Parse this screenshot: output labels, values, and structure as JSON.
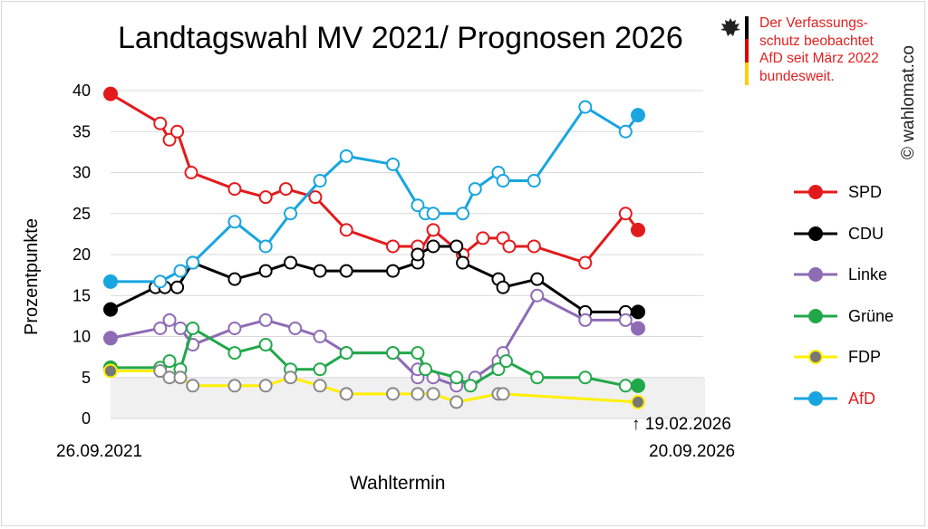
{
  "title": "Landtagswahl MV 2021/ Prognosen 2026",
  "notice": {
    "text_lines": [
      "Der Verfassungs-",
      "schutz beobachtet",
      "AfD seit März 2022",
      "bundesweit."
    ],
    "color": "#e02020",
    "icon": "eagle-icon",
    "flag_colors": [
      "#000000",
      "#dd0000",
      "#ffce00"
    ]
  },
  "watermark": "© wahlomat.co",
  "dates": {
    "start": "26.09.2021",
    "latest": "↑ 19.02.2026",
    "end": "20.09.2026"
  },
  "chart_data": {
    "type": "line",
    "title": "Landtagswahl MV 2021/ Prognosen 2026",
    "xlabel": "Wahltermin",
    "ylabel": "Prozentpunkte",
    "ylim": [
      0,
      40
    ],
    "yticks": [
      "0",
      "5",
      "10",
      "15",
      "20",
      "25",
      "30",
      "35",
      "40"
    ],
    "xrange": [
      0,
      34
    ],
    "threshold_band": 5,
    "grid": true,
    "legend_position": "right",
    "series": [
      {
        "name": "SPD",
        "color": "#e31a1c",
        "label_color": "#000000",
        "points": [
          [
            0,
            39.6
          ],
          [
            3.2,
            36
          ],
          [
            3.8,
            34
          ],
          [
            4.3,
            35
          ],
          [
            5.2,
            30
          ],
          [
            8,
            28
          ],
          [
            10,
            27
          ],
          [
            11.3,
            28
          ],
          [
            13.2,
            27
          ],
          [
            15.2,
            23
          ],
          [
            18.2,
            21
          ],
          [
            19.8,
            21
          ],
          [
            19.8,
            20
          ],
          [
            20.8,
            23
          ],
          [
            22.7,
            20
          ],
          [
            24,
            22
          ],
          [
            25.3,
            22
          ],
          [
            25.7,
            21
          ],
          [
            27.3,
            21
          ],
          [
            30.6,
            19
          ],
          [
            33.2,
            25
          ],
          [
            34,
            23
          ]
        ]
      },
      {
        "name": "CDU",
        "color": "#000000",
        "label_color": "#000000",
        "points": [
          [
            0,
            13.3
          ],
          [
            2.9,
            16
          ],
          [
            3.5,
            16
          ],
          [
            4.3,
            16
          ],
          [
            5.3,
            19
          ],
          [
            8,
            17
          ],
          [
            10,
            18
          ],
          [
            11.6,
            19
          ],
          [
            13.5,
            18
          ],
          [
            15.2,
            18
          ],
          [
            18.2,
            18
          ],
          [
            19.8,
            19
          ],
          [
            19.8,
            20
          ],
          [
            20.8,
            21
          ],
          [
            22.3,
            21
          ],
          [
            22.7,
            19
          ],
          [
            25,
            17
          ],
          [
            25.3,
            16
          ],
          [
            27.5,
            17
          ],
          [
            30.6,
            13
          ],
          [
            33.2,
            13
          ],
          [
            34,
            13
          ]
        ]
      },
      {
        "name": "Linke",
        "color": "#8e6bb5",
        "label_color": "#000000",
        "points": [
          [
            0,
            9.8
          ],
          [
            3.2,
            11
          ],
          [
            3.8,
            12
          ],
          [
            4.5,
            11
          ],
          [
            5.3,
            9
          ],
          [
            8,
            11
          ],
          [
            10,
            12
          ],
          [
            11.9,
            11
          ],
          [
            13.5,
            10
          ],
          [
            15.2,
            8
          ],
          [
            18.2,
            8
          ],
          [
            19.8,
            5
          ],
          [
            19.8,
            6
          ],
          [
            20.8,
            5
          ],
          [
            22.3,
            4
          ],
          [
            23.5,
            5
          ],
          [
            25,
            7
          ],
          [
            25.3,
            8
          ],
          [
            27.5,
            15
          ],
          [
            30.6,
            12
          ],
          [
            33.2,
            12
          ],
          [
            34,
            11
          ]
        ]
      },
      {
        "name": "Grüne",
        "color": "#21a84a",
        "label_color": "#000000",
        "points": [
          [
            0,
            6.2
          ],
          [
            3.2,
            6.2
          ],
          [
            3.8,
            7
          ],
          [
            4.5,
            6
          ],
          [
            5.3,
            11
          ],
          [
            8,
            8
          ],
          [
            10,
            9
          ],
          [
            11.6,
            6
          ],
          [
            13.5,
            6
          ],
          [
            15.2,
            8
          ],
          [
            18.2,
            8
          ],
          [
            19.8,
            8
          ],
          [
            20.3,
            6
          ],
          [
            22.3,
            5
          ],
          [
            23.2,
            4
          ],
          [
            25,
            6
          ],
          [
            25.5,
            7
          ],
          [
            27.5,
            5
          ],
          [
            30.6,
            5
          ],
          [
            33.2,
            4
          ],
          [
            34,
            4
          ]
        ]
      },
      {
        "name": "FDP",
        "color": "#ffef00",
        "label_color": "#000000",
        "points": [
          [
            0,
            5.8
          ],
          [
            3.2,
            5.8
          ],
          [
            3.8,
            5
          ],
          [
            4.5,
            5
          ],
          [
            5.3,
            4
          ],
          [
            8,
            4
          ],
          [
            10,
            4
          ],
          [
            11.6,
            5
          ],
          [
            13.5,
            4
          ],
          [
            15.2,
            3
          ],
          [
            18.2,
            3
          ],
          [
            19.8,
            3
          ],
          [
            20.8,
            3
          ],
          [
            22.3,
            2
          ],
          [
            25,
            3
          ],
          [
            25.3,
            3
          ],
          [
            34,
            2
          ]
        ]
      },
      {
        "name": "AfD",
        "color": "#18a5e0",
        "label_color": "#e02020",
        "points": [
          [
            0,
            16.7
          ],
          [
            3.2,
            16.7
          ],
          [
            4.5,
            18
          ],
          [
            5.3,
            19
          ],
          [
            8,
            24
          ],
          [
            10,
            21
          ],
          [
            11.6,
            25
          ],
          [
            13.5,
            29
          ],
          [
            15.2,
            32
          ],
          [
            18.2,
            31
          ],
          [
            19.8,
            26
          ],
          [
            20.3,
            25
          ],
          [
            20.8,
            25
          ],
          [
            22.7,
            25
          ],
          [
            23.5,
            28
          ],
          [
            25,
            30
          ],
          [
            25.3,
            29
          ],
          [
            27.3,
            29
          ],
          [
            30.6,
            38
          ],
          [
            33.2,
            35
          ],
          [
            34,
            37
          ]
        ]
      }
    ]
  }
}
